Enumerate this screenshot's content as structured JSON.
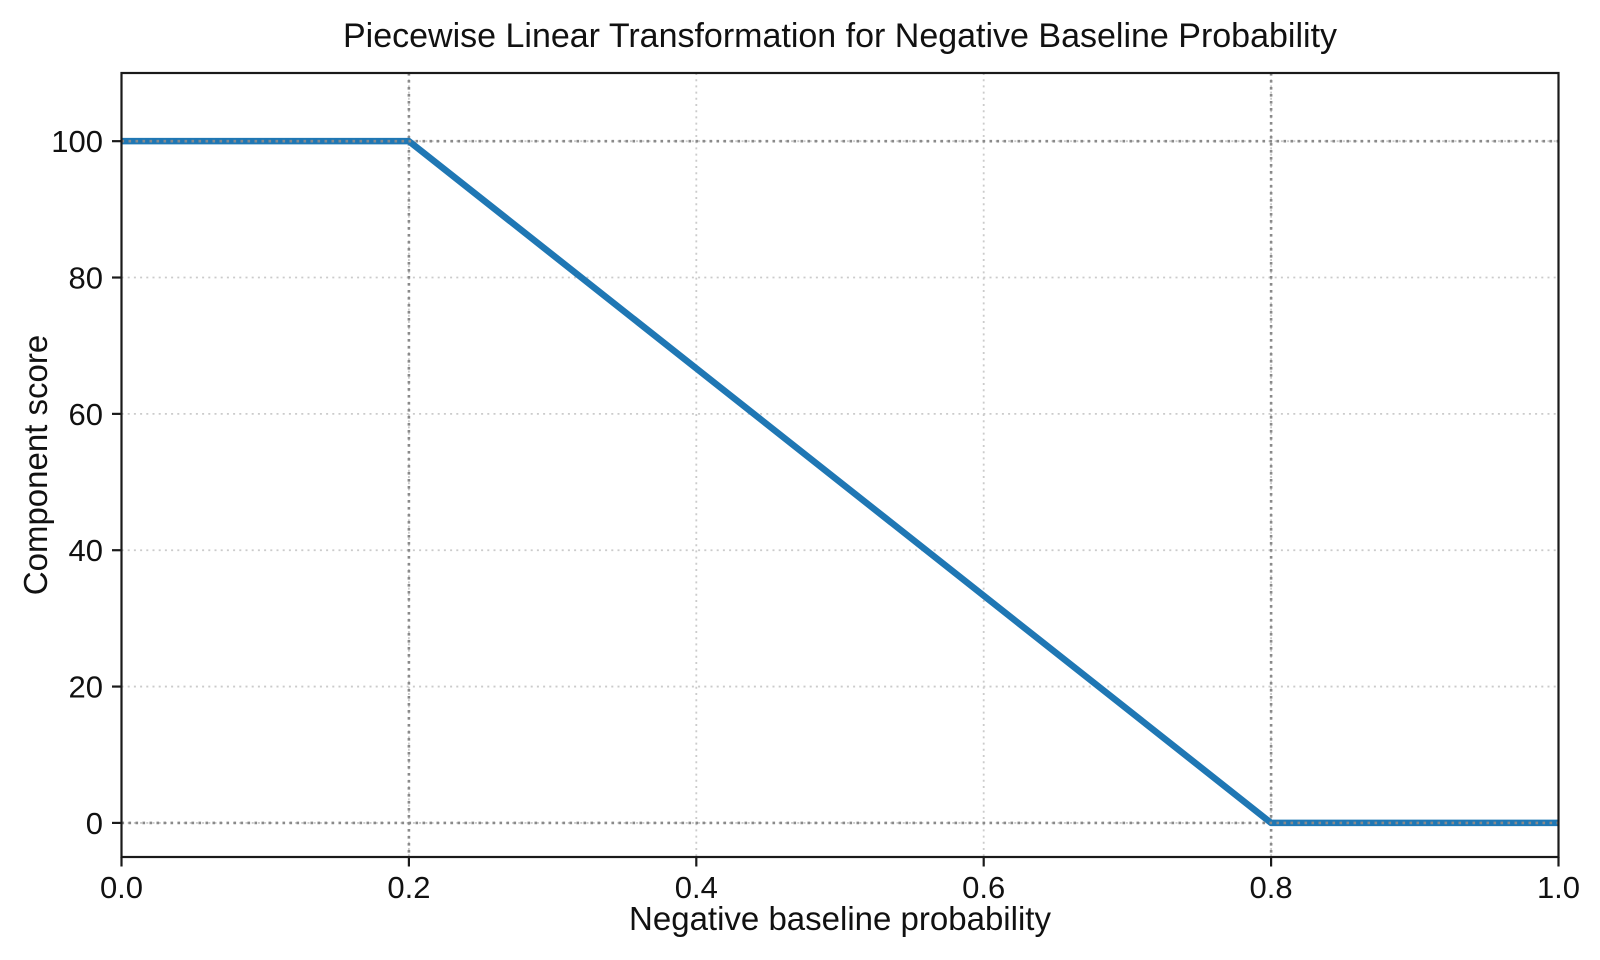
{
  "chart_data": {
    "type": "line",
    "title": "Piecewise Linear Transformation for Negative Baseline Probability",
    "xlabel": "Negative baseline probability",
    "ylabel": "Component score",
    "xlim": [
      0.0,
      1.0
    ],
    "ylim": [
      -5,
      110
    ],
    "xticks": [
      0.0,
      0.2,
      0.4,
      0.6,
      0.8,
      1.0
    ],
    "xtick_labels": [
      "0.0",
      "0.2",
      "0.4",
      "0.6",
      "0.8",
      "1.0"
    ],
    "yticks": [
      0,
      20,
      40,
      60,
      80,
      100
    ],
    "ytick_labels": [
      "0",
      "20",
      "40",
      "60",
      "80",
      "100"
    ],
    "grid": {
      "visible": true,
      "style": "dotted",
      "color": "#cbcbcb"
    },
    "reference_lines": {
      "vertical_x": [
        0.2,
        0.8
      ],
      "horizontal_y": [
        0,
        100
      ],
      "style": "dotted",
      "color": "#8a8a8a"
    },
    "series": [
      {
        "x": [
          0.0,
          0.2,
          0.8,
          1.0
        ],
        "y": [
          100,
          100,
          0,
          0
        ],
        "color": "#1f77b4"
      }
    ],
    "legend": "none",
    "background": "#ffffff",
    "spine_color": "#1a1a1a"
  }
}
